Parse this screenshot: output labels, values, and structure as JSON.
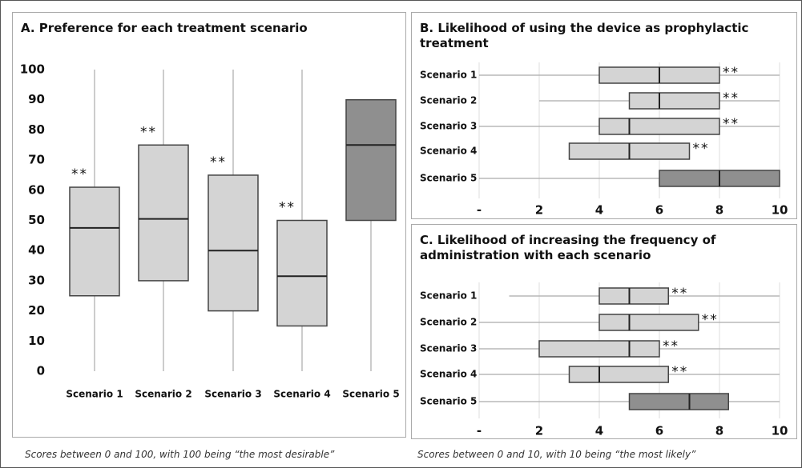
{
  "chart_data": [
    {
      "type": "box",
      "orientation": "vertical",
      "title": "A. Preference for each treatment scenario",
      "categories": [
        "Scenario 1",
        "Scenario 2",
        "Scenario 3",
        "Scenario 4",
        "Scenario 5"
      ],
      "stats": [
        {
          "min": 0,
          "q1": 25,
          "median": 47.5,
          "q3": 61,
          "max": 100
        },
        {
          "min": 0,
          "q1": 30,
          "median": 50.5,
          "q3": 75,
          "max": 100
        },
        {
          "min": 0,
          "q1": 20,
          "median": 40,
          "q3": 65,
          "max": 100
        },
        {
          "min": 0,
          "q1": 15,
          "median": 31.5,
          "q3": 50,
          "max": 100
        },
        {
          "min": 0,
          "q1": 50,
          "median": 75,
          "q3": 90,
          "max": 90
        }
      ],
      "colors": [
        "#d4d4d4",
        "#d4d4d4",
        "#d4d4d4",
        "#d4d4d4",
        "#8f8f8f"
      ],
      "annotations": [
        "**",
        "**",
        "**",
        "**",
        null
      ],
      "ylim": [
        0,
        100
      ],
      "yticks": [
        0,
        10,
        20,
        30,
        40,
        50,
        60,
        70,
        80,
        90,
        100
      ],
      "grid": false
    },
    {
      "type": "box",
      "orientation": "horizontal",
      "title": "B. Likelihood of using the device as prophylactic treatment",
      "categories": [
        "Scenario 1",
        "Scenario 2",
        "Scenario 3",
        "Scenario 4",
        "Scenario 5"
      ],
      "stats": [
        {
          "min": 0,
          "q1": 4,
          "median": 6,
          "q3": 8,
          "max": 10
        },
        {
          "min": 2,
          "q1": 5,
          "median": 6,
          "q3": 8,
          "max": 10
        },
        {
          "min": 0,
          "q1": 4,
          "median": 5,
          "q3": 8,
          "max": 10
        },
        {
          "min": 3,
          "q1": 3,
          "median": 5,
          "q3": 7,
          "max": 7
        },
        {
          "min": 0,
          "q1": 6,
          "median": 8,
          "q3": 10,
          "max": 10
        }
      ],
      "colors": [
        "#d4d4d4",
        "#d4d4d4",
        "#d4d4d4",
        "#d4d4d4",
        "#8f8f8f"
      ],
      "annotations": [
        "**",
        "**",
        "**",
        "**",
        null
      ],
      "xlim": [
        0,
        10
      ],
      "xticks": [
        {
          "value": 0,
          "label": "-"
        },
        2,
        4,
        6,
        8,
        10
      ],
      "grid": true
    },
    {
      "type": "box",
      "orientation": "horizontal",
      "title": "C. Likelihood of increasing the frequency of administration with each scenario",
      "categories": [
        "Scenario 1",
        "Scenario 2",
        "Scenario 3",
        "Scenario 4",
        "Scenario 5"
      ],
      "stats": [
        {
          "min": 1,
          "q1": 4,
          "median": 5,
          "q3": 6.3,
          "max": 10
        },
        {
          "min": 0,
          "q1": 4,
          "median": 5,
          "q3": 7.3,
          "max": 10
        },
        {
          "min": 0,
          "q1": 2,
          "median": 5,
          "q3": 6,
          "max": 10
        },
        {
          "min": 0,
          "q1": 3,
          "median": 4,
          "q3": 6.3,
          "max": 10
        },
        {
          "min": 0,
          "q1": 5,
          "median": 7,
          "q3": 8.3,
          "max": 10
        }
      ],
      "colors": [
        "#d4d4d4",
        "#d4d4d4",
        "#d4d4d4",
        "#d4d4d4",
        "#8f8f8f"
      ],
      "annotations": [
        "**",
        "**",
        "**",
        "**",
        null
      ],
      "xlim": [
        0,
        10
      ],
      "xticks": [
        {
          "value": 0,
          "label": "-"
        },
        2,
        4,
        6,
        8,
        10
      ],
      "grid": true
    }
  ],
  "footnotes": [
    "Scores between 0 and 100, with 100 being “the most desirable”",
    "Scores between 0 and 10, with 10 being “the most likely”"
  ]
}
